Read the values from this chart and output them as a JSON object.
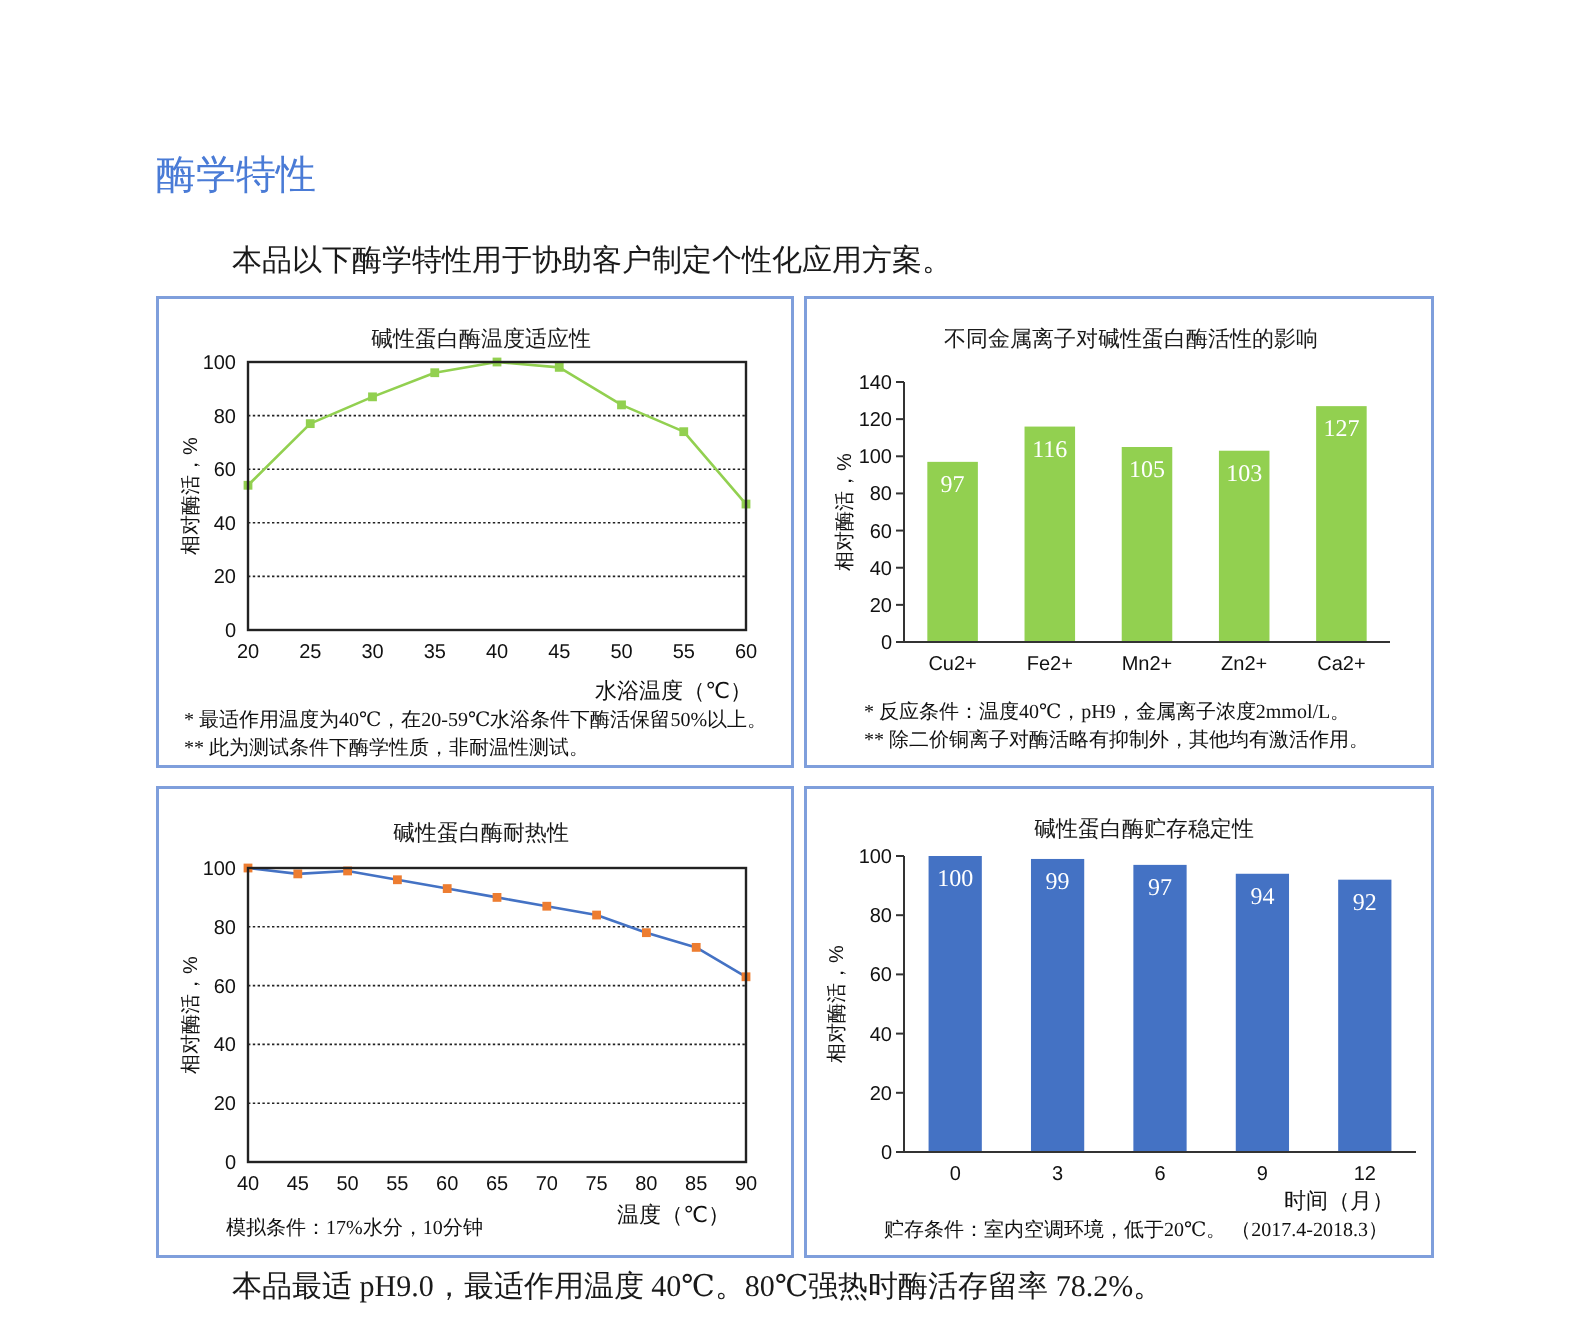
{
  "chart_data": [
    {
      "type": "other",
      "title": "酶学特性",
      "subtitle": "本品以下酶学特性用于协助客户制定个性化应用方案。"
    },
    {
      "type": "line",
      "title": "碱性蛋白酶温度适应性",
      "xlabel": "水浴温度（℃）",
      "ylabel": "相对酶活，%",
      "x": [
        20,
        25,
        30,
        35,
        40,
        45,
        50,
        55,
        60
      ],
      "values": [
        54,
        77,
        87,
        96,
        100,
        98,
        84,
        74,
        47
      ],
      "color": "#92d050",
      "xlim": [
        20,
        60
      ],
      "xticks": [
        20,
        25,
        30,
        35,
        40,
        45,
        50,
        55,
        60
      ],
      "ylim": [
        0,
        100
      ],
      "yticks": [
        0,
        20,
        40,
        60,
        80,
        100
      ],
      "grid": "y",
      "marker": "square",
      "annotations": [
        "* 最适作用温度为40℃，在20-59℃水浴条件下酶活保留50%以上。",
        "** 此为测试条件下酶学性质，非耐温性测试。"
      ]
    },
    {
      "type": "bar",
      "title": "不同金属离子对碱性蛋白酶活性的影响",
      "ylabel": "相对酶活，%",
      "categories": [
        "Cu2+",
        "Fe2+",
        "Mn2+",
        "Zn2+",
        "Ca2+"
      ],
      "values": [
        97,
        116,
        105,
        103,
        127
      ],
      "color": "#92d050",
      "ylim": [
        0,
        140
      ],
      "yticks": [
        0,
        20,
        40,
        60,
        80,
        100,
        120,
        140
      ],
      "data_labels": true,
      "annotations": [
        "* 反应条件：温度40℃，pH9，金属离子浓度2mmol/L。",
        "** 除二价铜离子对酶活略有抑制外，其他均有激活作用。"
      ]
    },
    {
      "type": "line",
      "title": "碱性蛋白酶耐热性",
      "xlabel": "温度（℃）",
      "ylabel": "相对酶活，%",
      "x": [
        40,
        45,
        50,
        55,
        60,
        65,
        70,
        75,
        80,
        85,
        90
      ],
      "values": [
        100,
        98,
        99,
        96,
        93,
        90,
        87,
        84,
        78,
        73,
        63
      ],
      "color": "#4472c4",
      "colors": [
        "#ed7d31",
        "#ed7d31",
        "#ed7d31",
        "#ed7d31",
        "#ed7d31",
        "#ed7d31",
        "#ed7d31",
        "#ed7d31",
        "#ed7d31",
        "#ed7d31",
        "#ed7d31"
      ],
      "xlim": [
        40,
        90
      ],
      "xticks": [
        40,
        45,
        50,
        55,
        60,
        65,
        70,
        75,
        80,
        85,
        90
      ],
      "ylim": [
        0,
        100
      ],
      "yticks": [
        0,
        20,
        40,
        60,
        80,
        100
      ],
      "grid": "y",
      "marker": "square",
      "annotations": [
        "模拟条件：17%水分，10分钟"
      ]
    },
    {
      "type": "bar",
      "title": "碱性蛋白酶贮存稳定性",
      "xlabel": "时间（月）",
      "ylabel": "相对酶活，%",
      "categories": [
        "0",
        "3",
        "6",
        "9",
        "12"
      ],
      "values": [
        100,
        99,
        97,
        94,
        92
      ],
      "color": "#4472c4",
      "ylim": [
        0,
        100
      ],
      "yticks": [
        0,
        20,
        40,
        60,
        80,
        100
      ],
      "data_labels": true,
      "annotations": [
        "贮存条件：室内空调环境，低于20℃。 （2017.4-2018.3）"
      ]
    },
    {
      "type": "other",
      "annotations": [
        "本品最适 pH9.0，最适作用温度 40℃。80℃强热时酶活存留率 78.2%。"
      ]
    }
  ]
}
